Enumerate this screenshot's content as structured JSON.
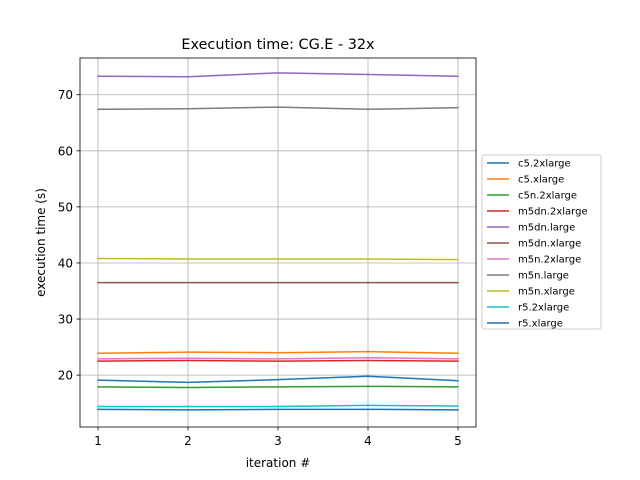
{
  "chart_data": {
    "type": "line",
    "title": "Execution time: CG.E - 32x",
    "xlabel": "iteration #",
    "ylabel": "execution time (s)",
    "x": [
      1,
      2,
      3,
      4,
      5
    ],
    "xticks": [
      "1",
      "2",
      "3",
      "4",
      "5"
    ],
    "xlim": [
      0.8,
      5.2
    ],
    "yticks": [
      "20",
      "30",
      "40",
      "50",
      "60",
      "70"
    ],
    "ylim": [
      10.75,
      76.55
    ],
    "grid": true,
    "legend_position": "center right, outside plot area",
    "series": [
      {
        "name": "c5.2xlarge",
        "color": "#1f77b4",
        "values": [
          19.1,
          18.7,
          19.2,
          19.8,
          19.0
        ]
      },
      {
        "name": "c5.xlarge",
        "color": "#ff7f0e",
        "values": [
          23.9,
          24.1,
          24.0,
          24.2,
          23.9
        ]
      },
      {
        "name": "c5n.2xlarge",
        "color": "#2ca02c",
        "values": [
          17.9,
          17.8,
          17.9,
          18.0,
          17.9
        ]
      },
      {
        "name": "m5dn.2xlarge",
        "color": "#d62728",
        "values": [
          22.5,
          22.6,
          22.5,
          22.6,
          22.5
        ]
      },
      {
        "name": "m5dn.large",
        "color": "#9467bd",
        "values": [
          73.3,
          73.2,
          73.9,
          73.6,
          73.3
        ]
      },
      {
        "name": "m5dn.xlarge",
        "color": "#8c564b",
        "values": [
          36.5,
          36.5,
          36.5,
          36.5,
          36.5
        ]
      },
      {
        "name": "m5n.2xlarge",
        "color": "#e377c2",
        "values": [
          22.9,
          23.0,
          22.9,
          23.1,
          22.9
        ]
      },
      {
        "name": "m5n.large",
        "color": "#7f7f7f",
        "values": [
          67.4,
          67.5,
          67.8,
          67.4,
          67.7
        ]
      },
      {
        "name": "m5n.xlarge",
        "color": "#bcbd22",
        "values": [
          40.8,
          40.7,
          40.7,
          40.7,
          40.6
        ]
      },
      {
        "name": "r5.2xlarge",
        "color": "#17becf",
        "values": [
          14.4,
          14.4,
          14.4,
          14.6,
          14.5
        ]
      },
      {
        "name": "r5.xlarge",
        "color": "#1f6fb4",
        "values": [
          13.9,
          13.8,
          13.9,
          13.9,
          13.8
        ]
      }
    ]
  }
}
